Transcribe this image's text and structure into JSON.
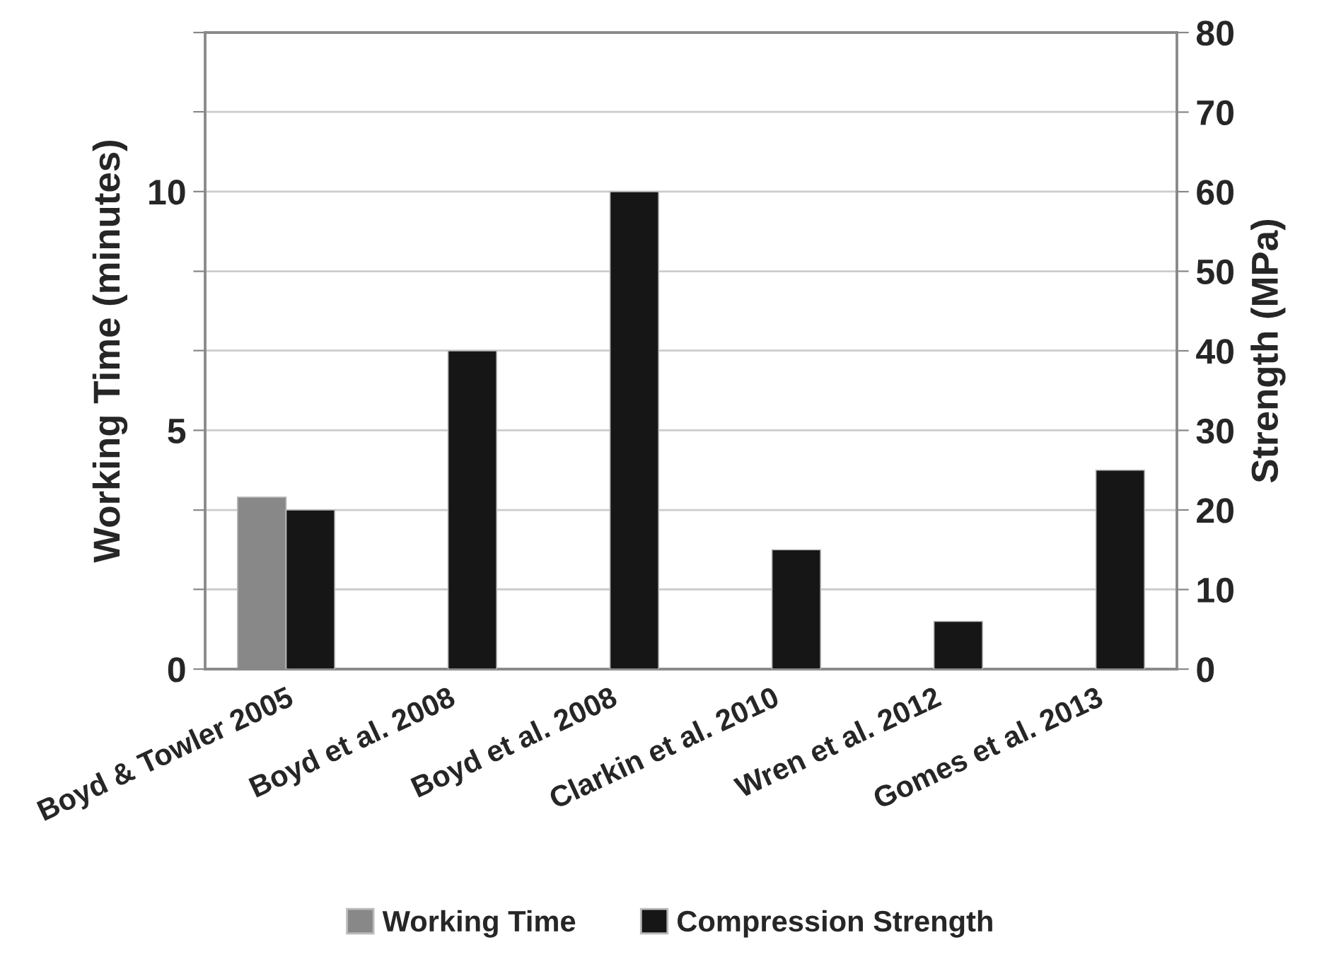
{
  "chart_data": {
    "type": "bar",
    "categories": [
      "Boyd & Towler 2005",
      "Boyd et al. 2008",
      "Boyd et al. 2008",
      "Clarkin et al. 2010",
      "Wren et al. 2012",
      "Gomes et al. 2013"
    ],
    "series": [
      {
        "name": "Working Time",
        "color": "#888888",
        "values": [
          3.6,
          null,
          null,
          null,
          null,
          null
        ]
      },
      {
        "name": "Compression Strength",
        "color": "#161616",
        "axis": "y2",
        "values": [
          20,
          40,
          60,
          15,
          6,
          25
        ]
      }
    ],
    "ylabel": "Working Time (minutes)",
    "y2label": "Strength (MPa)",
    "ylim": [
      0,
      13.33
    ],
    "yticks": [
      0,
      {
        "value": 1.67,
        "label": null
      },
      {
        "value": 3.33,
        "label": null
      },
      5,
      {
        "value": 6.67,
        "label": null
      },
      {
        "value": 8.33,
        "label": null
      },
      10,
      {
        "value": 11.67,
        "label": null
      },
      {
        "value": 13.33,
        "label": null
      }
    ],
    "y2lim": [
      0,
      80
    ],
    "y2ticks": [
      0,
      10,
      20,
      30,
      40,
      50,
      60,
      70,
      80
    ],
    "grid": "y",
    "legend": "bottom"
  }
}
